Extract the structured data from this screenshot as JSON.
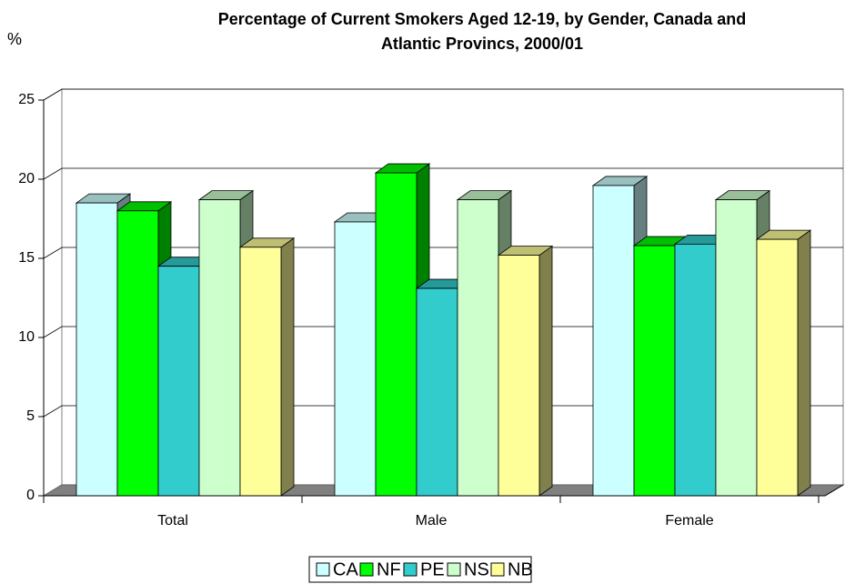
{
  "chart_data": {
    "type": "bar3d",
    "title": "Percentage of Current Smokers Aged 12-19, by Gender, Canada and Atlantic Provincs, 2000/01",
    "y_label": "%",
    "categories": [
      "Total",
      "Male",
      "Female"
    ],
    "series": [
      {
        "name": "CA",
        "color": "#ccffff",
        "values": [
          18.5,
          17.3,
          19.6
        ]
      },
      {
        "name": "NF",
        "color": "#00ff00",
        "values": [
          18.0,
          20.4,
          15.8
        ]
      },
      {
        "name": "PE",
        "color": "#33cccc",
        "values": [
          14.5,
          13.1,
          15.9
        ]
      },
      {
        "name": "NS",
        "color": "#ccffcc",
        "values": [
          18.7,
          18.7,
          18.7
        ]
      },
      {
        "name": "NB",
        "color": "#ffff99",
        "values": [
          15.7,
          15.2,
          16.2
        ]
      }
    ],
    "ylim": [
      0,
      25
    ],
    "yticks": [
      0,
      5,
      10,
      15,
      20,
      25
    ],
    "grid": true,
    "legend": "bottom"
  }
}
